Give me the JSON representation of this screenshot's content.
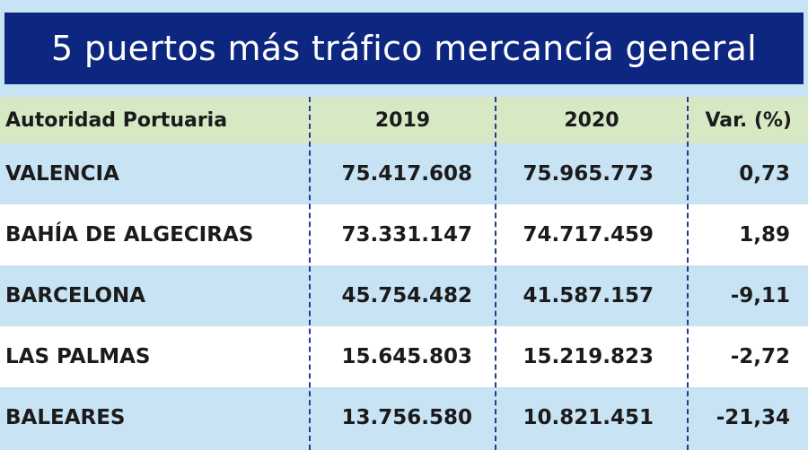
{
  "title": "5 puertos más tráfico mercancía general",
  "columns": [
    "Autoridad Portuaria",
    "2019",
    "2020",
    "Var. (%)"
  ],
  "rows": [
    {
      "port": "VALENCIA",
      "y2019": "75.417.608",
      "y2020": "75.965.773",
      "var": "0,73"
    },
    {
      "port": "BAHÍA DE ALGECIRAS",
      "y2019": "73.331.147",
      "y2020": "74.717.459",
      "var": "1,89"
    },
    {
      "port": "BARCELONA",
      "y2019": "45.754.482",
      "y2020": "41.587.157",
      "var": "-9,11"
    },
    {
      "port": "LAS PALMAS",
      "y2019": "15.645.803",
      "y2020": "15.219.823",
      "var": "-2,72"
    },
    {
      "port": "BALEARES",
      "y2019": "13.756.580",
      "y2020": "10.821.451",
      "var": "-21,34"
    }
  ],
  "colors": {
    "title_bg": "#0d2680",
    "header_bg": "#d6e9c4",
    "row_blue": "#c7e3f4",
    "row_white": "#ffffff",
    "divider": "#1f3d8c"
  }
}
